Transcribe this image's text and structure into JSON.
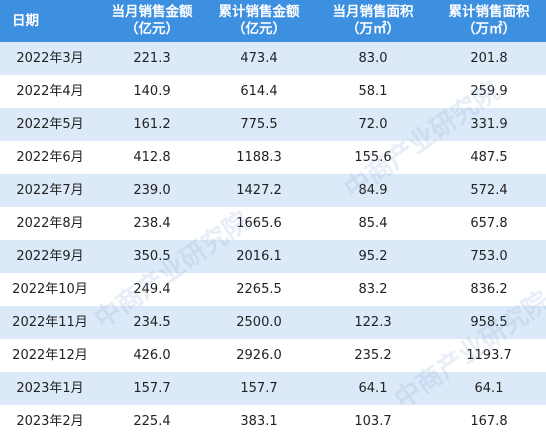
{
  "table": {
    "header": [
      {
        "title": "日期"
      },
      {
        "title": "当月销售金额",
        "unit": "（亿元）"
      },
      {
        "title": "累计销售金额",
        "unit": "（亿元）"
      },
      {
        "title": "当月销售面积",
        "unit": "（万㎡）"
      },
      {
        "title": "累计销售面积",
        "unit": "（万㎡）"
      }
    ],
    "rows": [
      [
        "2022年3月",
        "221.3",
        "473.4",
        "83.0",
        "201.8"
      ],
      [
        "2022年4月",
        "140.9",
        "614.4",
        "58.1",
        "259.9"
      ],
      [
        "2022年5月",
        "161.2",
        "775.5",
        "72.0",
        "331.9"
      ],
      [
        "2022年6月",
        "412.8",
        "1188.3",
        "155.6",
        "487.5"
      ],
      [
        "2022年7月",
        "239.0",
        "1427.2",
        "84.9",
        "572.4"
      ],
      [
        "2022年8月",
        "238.4",
        "1665.6",
        "85.4",
        "657.8"
      ],
      [
        "2022年9月",
        "350.5",
        "2016.1",
        "95.2",
        "753.0"
      ],
      [
        "2022年10月",
        "249.4",
        "2265.5",
        "83.2",
        "836.2"
      ],
      [
        "2022年11月",
        "234.5",
        "2500.0",
        "122.3",
        "958.5"
      ],
      [
        "2022年12月",
        "426.0",
        "2926.0",
        "235.2",
        "1193.7"
      ],
      [
        "2023年1月",
        "157.7",
        "157.7",
        "64.1",
        "64.1"
      ],
      [
        "2023年2月",
        "225.4",
        "383.1",
        "103.7",
        "167.8"
      ]
    ]
  },
  "watermark": "中商产业研究院"
}
